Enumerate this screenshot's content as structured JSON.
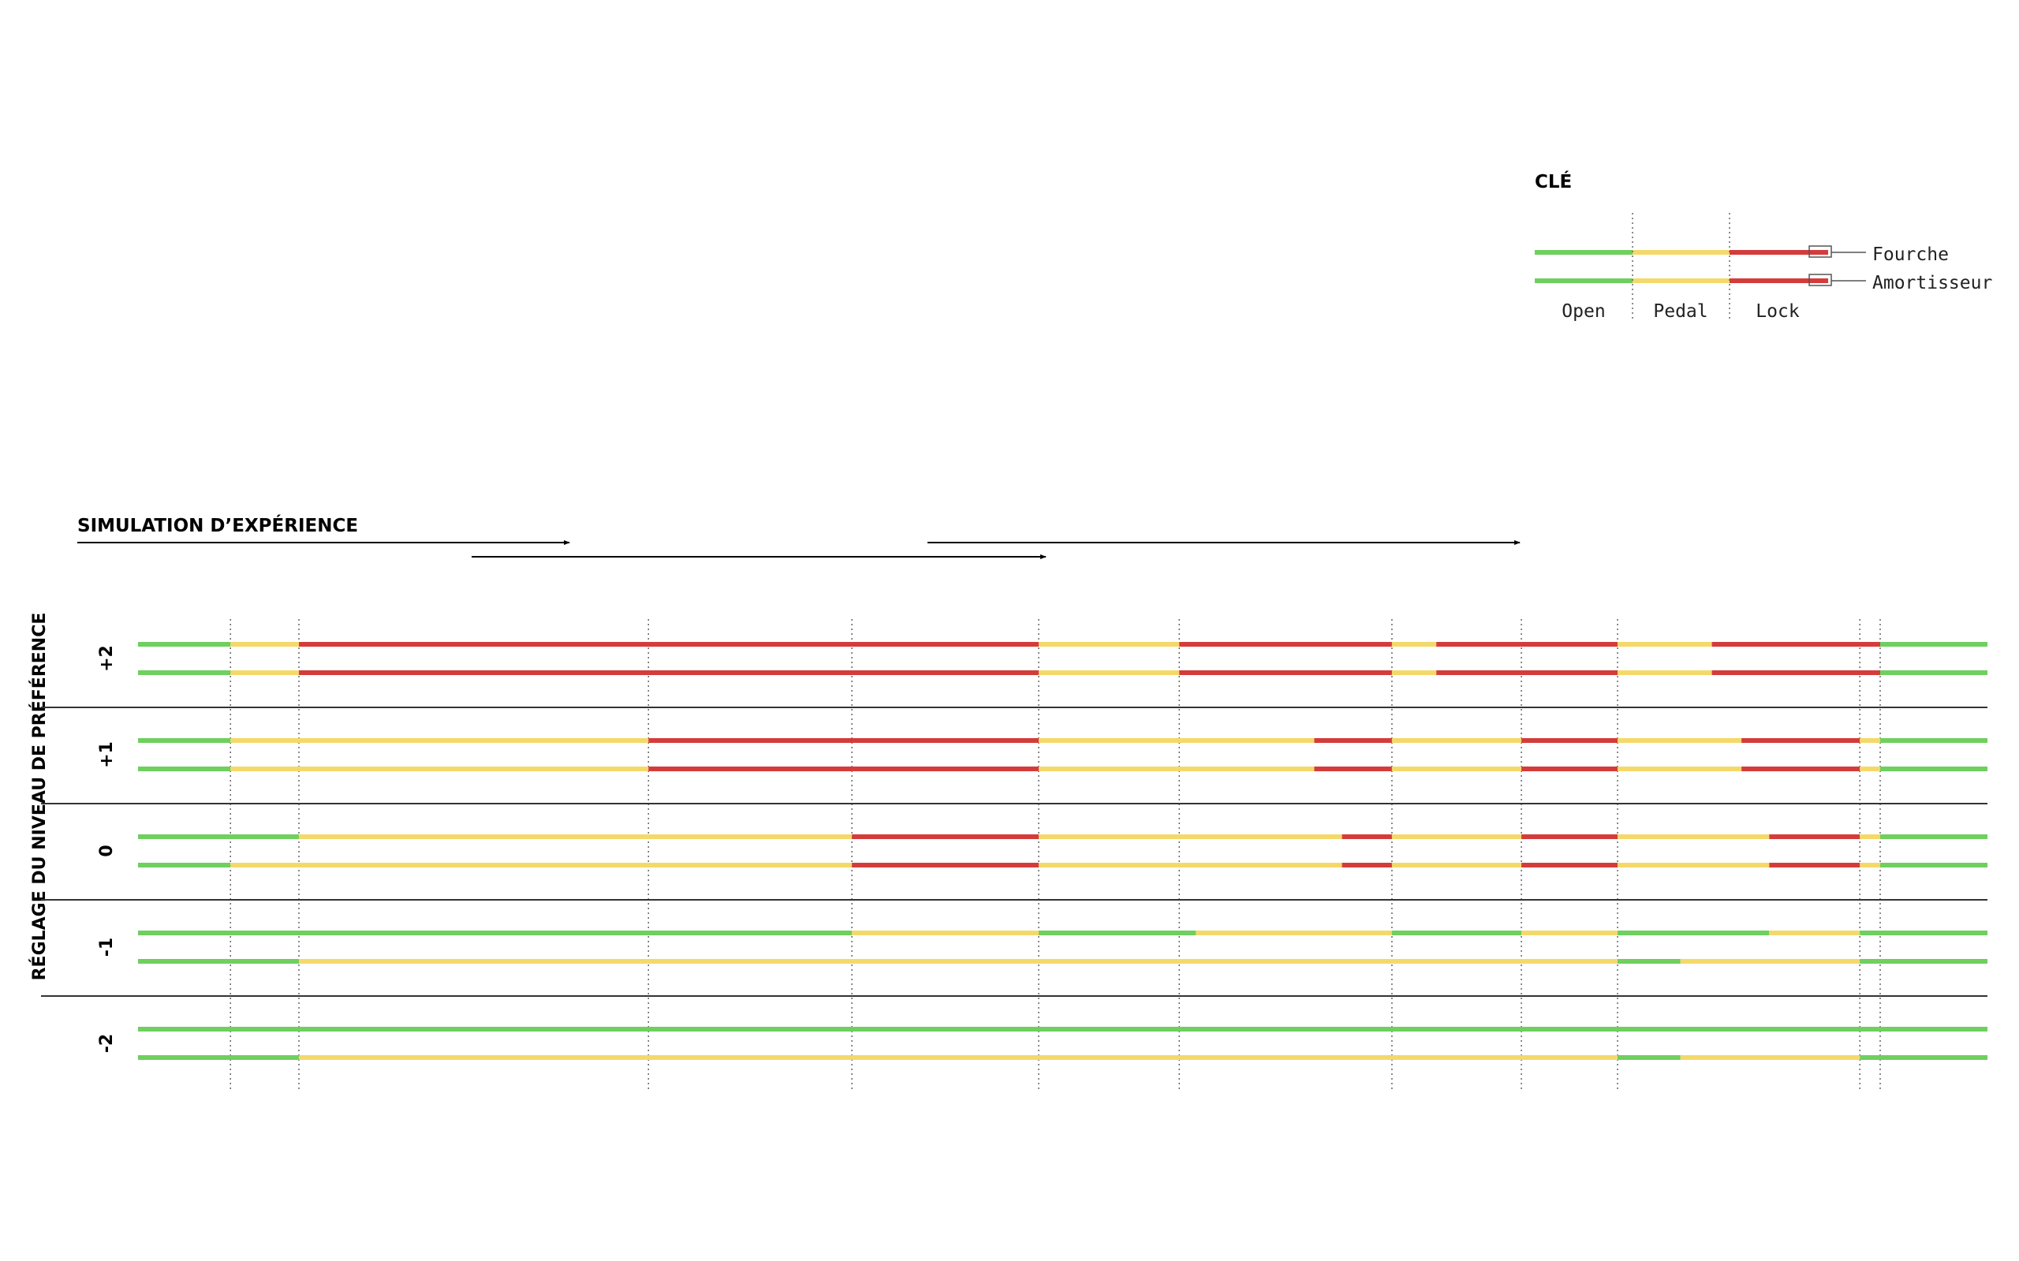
{
  "legend": {
    "title": "CLÉ",
    "states": [
      "Open",
      "Pedal",
      "Lock"
    ],
    "lines": [
      "Fourche",
      "Amortisseur"
    ]
  },
  "colors": {
    "Open": "#6fcf5f",
    "Pedal": "#f4d96a",
    "Lock": "#d43c3c",
    "divider": "#333333",
    "grid": "#666666"
  },
  "chart_data": {
    "type": "timeline",
    "title": "SIMULATION D’EXPÉRIENCE",
    "ylabel": "RÉGLAGE DU NIVEAU DE PRÉFÉRENCE",
    "states": [
      "Open",
      "Pedal",
      "Lock"
    ],
    "line_names": [
      "Fourche",
      "Amortisseur"
    ],
    "xlim": [
      0,
      100
    ],
    "boundaries": [
      5.0,
      8.7,
      27.6,
      38.6,
      48.7,
      56.3,
      67.8,
      74.8,
      80.0,
      93.1,
      94.2
    ],
    "rows": [
      {
        "label": "+2",
        "tracks": [
          [
            [
              "Open",
              0,
              5.0
            ],
            [
              "Pedal",
              5.0,
              8.7
            ],
            [
              "Lock",
              8.7,
              48.7
            ],
            [
              "Pedal",
              48.7,
              56.3
            ],
            [
              "Lock",
              56.3,
              67.8
            ],
            [
              "Pedal",
              67.8,
              70.2
            ],
            [
              "Lock",
              70.2,
              80.0
            ],
            [
              "Pedal",
              80.0,
              85.1
            ],
            [
              "Lock",
              85.1,
              94.2
            ],
            [
              "Open",
              94.2,
              100
            ]
          ],
          [
            [
              "Open",
              0,
              5.0
            ],
            [
              "Pedal",
              5.0,
              8.7
            ],
            [
              "Lock",
              8.7,
              48.7
            ],
            [
              "Pedal",
              48.7,
              56.3
            ],
            [
              "Lock",
              56.3,
              67.8
            ],
            [
              "Pedal",
              67.8,
              70.2
            ],
            [
              "Lock",
              70.2,
              80.0
            ],
            [
              "Pedal",
              80.0,
              85.1
            ],
            [
              "Lock",
              85.1,
              94.2
            ],
            [
              "Open",
              94.2,
              100
            ]
          ]
        ]
      },
      {
        "label": "+1",
        "tracks": [
          [
            [
              "Open",
              0,
              5.0
            ],
            [
              "Pedal",
              5.0,
              27.6
            ],
            [
              "Lock",
              27.6,
              48.7
            ],
            [
              "Pedal",
              48.7,
              63.6
            ],
            [
              "Lock",
              63.6,
              67.8
            ],
            [
              "Pedal",
              67.8,
              74.8
            ],
            [
              "Lock",
              74.8,
              80.0
            ],
            [
              "Pedal",
              80.0,
              86.7
            ],
            [
              "Lock",
              86.7,
              93.1
            ],
            [
              "Pedal",
              93.1,
              94.2
            ],
            [
              "Open",
              94.2,
              100
            ]
          ],
          [
            [
              "Open",
              0,
              5.0
            ],
            [
              "Pedal",
              5.0,
              27.6
            ],
            [
              "Lock",
              27.6,
              48.7
            ],
            [
              "Pedal",
              48.7,
              63.6
            ],
            [
              "Lock",
              63.6,
              67.8
            ],
            [
              "Pedal",
              67.8,
              74.8
            ],
            [
              "Lock",
              74.8,
              80.0
            ],
            [
              "Pedal",
              80.0,
              86.7
            ],
            [
              "Lock",
              86.7,
              93.1
            ],
            [
              "Pedal",
              93.1,
              94.2
            ],
            [
              "Open",
              94.2,
              100
            ]
          ]
        ]
      },
      {
        "label": "0",
        "tracks": [
          [
            [
              "Open",
              0,
              8.7
            ],
            [
              "Pedal",
              8.7,
              38.6
            ],
            [
              "Lock",
              38.6,
              48.7
            ],
            [
              "Pedal",
              48.7,
              65.1
            ],
            [
              "Lock",
              65.1,
              67.8
            ],
            [
              "Pedal",
              67.8,
              74.8
            ],
            [
              "Lock",
              74.8,
              80.0
            ],
            [
              "Pedal",
              80.0,
              88.2
            ],
            [
              "Lock",
              88.2,
              93.1
            ],
            [
              "Pedal",
              93.1,
              94.2
            ],
            [
              "Open",
              94.2,
              100
            ]
          ],
          [
            [
              "Open",
              0,
              5.0
            ],
            [
              "Pedal",
              5.0,
              38.6
            ],
            [
              "Lock",
              38.6,
              48.7
            ],
            [
              "Pedal",
              48.7,
              65.1
            ],
            [
              "Lock",
              65.1,
              67.8
            ],
            [
              "Pedal",
              67.8,
              74.8
            ],
            [
              "Lock",
              74.8,
              80.0
            ],
            [
              "Pedal",
              80.0,
              88.2
            ],
            [
              "Lock",
              88.2,
              93.1
            ],
            [
              "Pedal",
              93.1,
              94.2
            ],
            [
              "Open",
              94.2,
              100
            ]
          ]
        ]
      },
      {
        "label": "-1",
        "tracks": [
          [
            [
              "Open",
              0,
              38.6
            ],
            [
              "Pedal",
              38.6,
              48.7
            ],
            [
              "Open",
              48.7,
              57.2
            ],
            [
              "Pedal",
              57.2,
              67.8
            ],
            [
              "Open",
              67.8,
              74.8
            ],
            [
              "Pedal",
              74.8,
              80.0
            ],
            [
              "Open",
              80.0,
              88.2
            ],
            [
              "Pedal",
              88.2,
              93.1
            ],
            [
              "Open",
              93.1,
              100
            ]
          ],
          [
            [
              "Open",
              0,
              8.7
            ],
            [
              "Pedal",
              8.7,
              80.0
            ],
            [
              "Open",
              80.0,
              83.4
            ],
            [
              "Pedal",
              83.4,
              93.1
            ],
            [
              "Open",
              93.1,
              100
            ]
          ]
        ]
      },
      {
        "label": "-2",
        "tracks": [
          [
            [
              "Open",
              0,
              100
            ]
          ],
          [
            [
              "Open",
              0,
              8.7
            ],
            [
              "Pedal",
              8.7,
              80.0
            ],
            [
              "Open",
              80.0,
              83.4
            ],
            [
              "Pedal",
              83.4,
              93.1
            ],
            [
              "Open",
              93.1,
              100
            ]
          ]
        ]
      }
    ],
    "legend_position": "top-right",
    "grid": "vertical dotted lines at phase boundaries"
  }
}
